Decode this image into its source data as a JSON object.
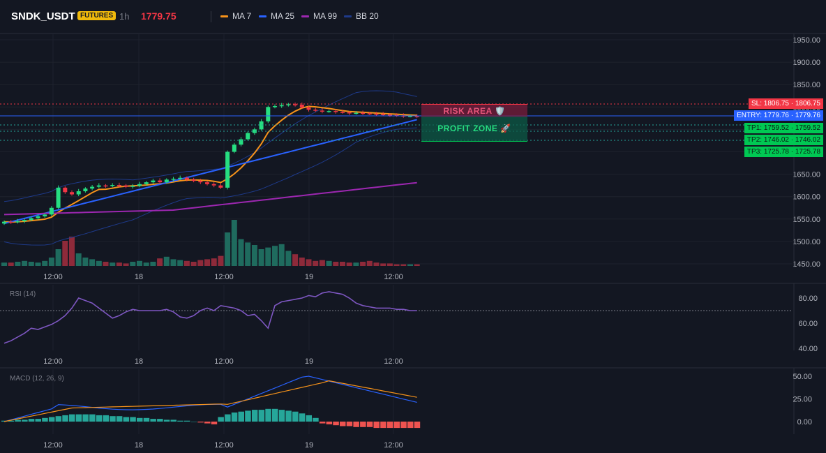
{
  "header": {
    "symbol": "SNDK_USDT",
    "badge": "FUTURES",
    "interval": "1h",
    "price": "1779.75",
    "legend": [
      {
        "label": "MA 7",
        "color": "#f7931a"
      },
      {
        "label": "MA 25",
        "color": "#2962ff"
      },
      {
        "label": "MA 99",
        "color": "#9c27b0"
      },
      {
        "label": "BB 20",
        "color": "#1e3a8a"
      }
    ]
  },
  "x_axis_labels": [
    "12:00",
    "18",
    "12:00",
    "19",
    "12:00"
  ],
  "main_chart": {
    "y_ticks": [
      "1950.00",
      "1900.00",
      "1850.00",
      "1800.00",
      "1750.00",
      "1700.00",
      "1650.00",
      "1600.00",
      "1550.00",
      "1500.00",
      "1450.00"
    ],
    "tags": [
      {
        "text": "SL: 1806.75 · 1806.75",
        "color": "#f23645"
      },
      {
        "text": "ENTRY: 1779.76 · 1779.76",
        "color": "#2962ff"
      },
      {
        "text": "TP1: 1759.52 · 1759.52",
        "color": "#00c853"
      },
      {
        "text": "TP2: 1746.02 · 1746.02",
        "color": "#00c853"
      },
      {
        "text": "TP3: 1725.78 · 1725.78",
        "color": "#00c853"
      }
    ],
    "risk_label": "RISK AREA 🛡️",
    "profit_label": "PROFIT ZONE 🚀",
    "colors": {
      "up": "#26de81",
      "down": "#f23645",
      "vol_up": "#1f6b5e",
      "vol_down": "#8e2a3a"
    }
  },
  "rsi": {
    "title": "RSI (14)",
    "y_ticks": [
      "80.00",
      "60.00",
      "40.00"
    ]
  },
  "macd": {
    "title": "MACD (12, 26, 9)",
    "y_ticks": [
      "50.00",
      "25.00",
      "0.00"
    ]
  }
}
